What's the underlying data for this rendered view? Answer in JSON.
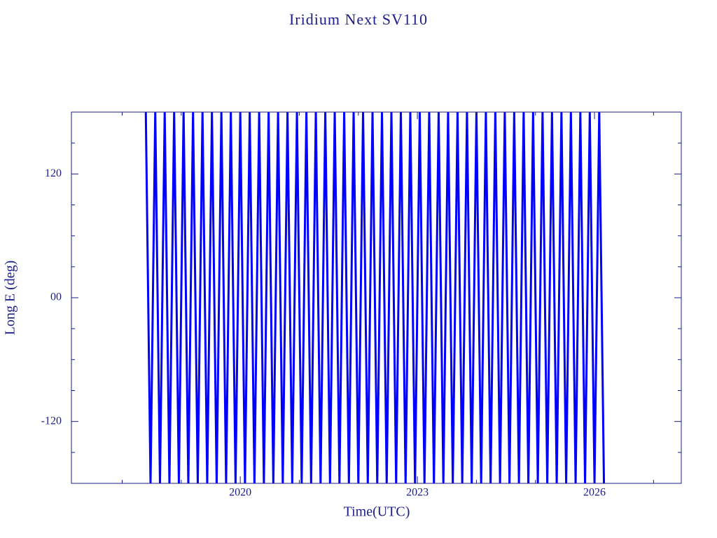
{
  "chart_data": {
    "type": "line",
    "title": "Iridium Next SV110",
    "xlabel": "Time(UTC)",
    "ylabel": "Long E (deg)",
    "xlim": [
      2017.14,
      2027.47
    ],
    "ylim": [
      -180,
      180
    ],
    "xticks": [
      2020,
      2023,
      2026
    ],
    "yticks": [
      -120,
      {
        "value": 0,
        "label": "00"
      },
      120
    ],
    "xminorticks": [
      2018,
      2019,
      2021,
      2022,
      2024,
      2025,
      2027
    ],
    "yminorticks": [
      -150,
      -90,
      -60,
      -30,
      30,
      60,
      90,
      150
    ],
    "axis_color": "#1c1c8c",
    "series": [
      {
        "color": "#0000ff",
        "x": [
          2018.4,
          2018.48,
          2018.56,
          2018.64,
          2018.72,
          2018.8,
          2018.88,
          2018.96,
          2019.04,
          2019.12,
          2019.2,
          2019.28,
          2019.36,
          2019.44,
          2019.52,
          2019.6,
          2019.68,
          2019.76,
          2019.84,
          2019.92,
          2020.0,
          2020.08,
          2020.16,
          2020.24,
          2020.32,
          2020.4,
          2020.48,
          2020.56,
          2020.64,
          2020.72,
          2020.8,
          2020.88,
          2020.96,
          2021.04,
          2021.12,
          2021.2,
          2021.28,
          2021.36,
          2021.44,
          2021.52,
          2021.6,
          2021.68,
          2021.76,
          2021.84,
          2021.92,
          2022.0,
          2022.08,
          2022.16,
          2022.24,
          2022.32,
          2022.4,
          2022.48,
          2022.56,
          2022.64,
          2022.72,
          2022.8,
          2022.88,
          2022.96,
          2023.04,
          2023.12,
          2023.2,
          2023.28,
          2023.36,
          2023.44,
          2023.52,
          2023.6,
          2023.68,
          2023.76,
          2023.84,
          2023.92,
          2024.0,
          2024.08,
          2024.16,
          2024.24,
          2024.32,
          2024.4,
          2024.48,
          2024.56,
          2024.64,
          2024.72,
          2024.8,
          2024.88,
          2024.96,
          2025.04,
          2025.12,
          2025.2,
          2025.28,
          2025.36,
          2025.44,
          2025.52,
          2025.6,
          2025.68,
          2025.76,
          2025.84,
          2025.92,
          2026.0,
          2026.08,
          2026.16
        ],
        "values": [
          180,
          -180,
          180,
          -180,
          180,
          -180,
          180,
          -180,
          180,
          -180,
          180,
          -180,
          180,
          -180,
          180,
          -180,
          180,
          -180,
          180,
          -180,
          180,
          -180,
          180,
          -180,
          180,
          -180,
          180,
          -180,
          180,
          -180,
          180,
          -180,
          180,
          -180,
          180,
          -180,
          180,
          -180,
          180,
          -180,
          180,
          -180,
          180,
          -180,
          180,
          -180,
          180,
          -180,
          180,
          -180,
          180,
          -180,
          180,
          -180,
          180,
          -180,
          180,
          -180,
          180,
          -180,
          180,
          -180,
          180,
          -180,
          180,
          -180,
          180,
          -180,
          180,
          -180,
          180,
          -180,
          180,
          -180,
          180,
          -180,
          180,
          -180,
          180,
          -180,
          180,
          -180,
          180,
          -180,
          180,
          -180,
          180,
          -180,
          180,
          -180,
          180,
          -180,
          180,
          -180,
          180,
          -180,
          180,
          -180
        ]
      }
    ]
  }
}
